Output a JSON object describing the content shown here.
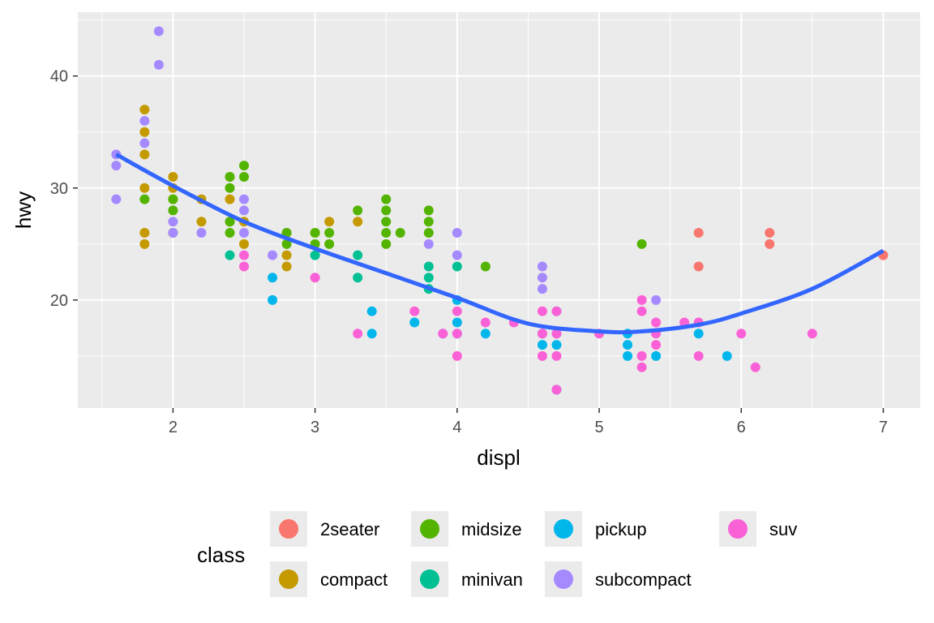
{
  "chart_data": {
    "type": "scatter",
    "title": "",
    "xlabel": "displ",
    "ylabel": "hwy",
    "xlim": [
      1.33,
      7.26
    ],
    "ylim": [
      10.36,
      45.7
    ],
    "x_ticks": [
      "2",
      "3",
      "4",
      "5",
      "6",
      "7"
    ],
    "y_ticks": [
      "20",
      "30",
      "40"
    ],
    "grid": true,
    "legend": {
      "title": "class",
      "placement": "bottom"
    },
    "colors": {
      "2seater": "#F8766D",
      "compact": "#C49A00",
      "midsize": "#53B400",
      "minivan": "#00C094",
      "pickup": "#00B6EB",
      "subcompact": "#A58AFF",
      "suv": "#FB61D7",
      "smooth": "#3366FF"
    },
    "legend_order": [
      "2seater",
      "midsize",
      "pickup",
      "suv",
      "compact",
      "minivan",
      "subcompact"
    ],
    "series": [
      {
        "name": "2seater",
        "points": [
          [
            5.7,
            26
          ],
          [
            5.7,
            23
          ],
          [
            6.2,
            26
          ],
          [
            6.2,
            25
          ],
          [
            7.0,
            24
          ]
        ]
      },
      {
        "name": "compact",
        "points": [
          [
            1.8,
            37
          ],
          [
            1.8,
            35
          ],
          [
            1.8,
            33
          ],
          [
            1.8,
            30
          ],
          [
            1.8,
            26
          ],
          [
            1.8,
            25
          ],
          [
            2.0,
            31
          ],
          [
            2.0,
            30
          ],
          [
            2.0,
            29
          ],
          [
            2.0,
            26
          ],
          [
            2.2,
            29
          ],
          [
            2.2,
            27
          ],
          [
            2.4,
            31
          ],
          [
            2.4,
            29
          ],
          [
            2.4,
            27
          ],
          [
            2.5,
            27
          ],
          [
            2.5,
            25
          ],
          [
            2.8,
            26
          ],
          [
            2.8,
            24
          ],
          [
            2.8,
            23
          ],
          [
            3.0,
            26
          ],
          [
            3.1,
            27
          ],
          [
            3.3,
            27
          ]
        ]
      },
      {
        "name": "midsize",
        "points": [
          [
            1.8,
            29
          ],
          [
            2.0,
            29
          ],
          [
            2.0,
            28
          ],
          [
            2.0,
            26
          ],
          [
            2.4,
            31
          ],
          [
            2.4,
            30
          ],
          [
            2.4,
            27
          ],
          [
            2.4,
            26
          ],
          [
            2.5,
            32
          ],
          [
            2.5,
            31
          ],
          [
            2.8,
            26
          ],
          [
            2.8,
            25
          ],
          [
            3.0,
            26
          ],
          [
            3.0,
            25
          ],
          [
            3.1,
            26
          ],
          [
            3.1,
            25
          ],
          [
            3.3,
            28
          ],
          [
            3.5,
            29
          ],
          [
            3.5,
            28
          ],
          [
            3.5,
            27
          ],
          [
            3.5,
            26
          ],
          [
            3.5,
            25
          ],
          [
            3.6,
            26
          ],
          [
            3.8,
            28
          ],
          [
            3.8,
            27
          ],
          [
            3.8,
            26
          ],
          [
            4.2,
            23
          ],
          [
            5.3,
            25
          ]
        ]
      },
      {
        "name": "minivan",
        "points": [
          [
            2.4,
            24
          ],
          [
            3.0,
            24
          ],
          [
            3.3,
            24
          ],
          [
            3.3,
            22
          ],
          [
            3.8,
            23
          ],
          [
            3.8,
            22
          ],
          [
            3.8,
            21
          ],
          [
            4.0,
            23
          ]
        ]
      },
      {
        "name": "pickup",
        "points": [
          [
            2.7,
            22
          ],
          [
            2.7,
            20
          ],
          [
            3.4,
            19
          ],
          [
            3.4,
            17
          ],
          [
            3.7,
            18
          ],
          [
            3.9,
            17
          ],
          [
            4.0,
            20
          ],
          [
            4.0,
            18
          ],
          [
            4.0,
            17
          ],
          [
            4.2,
            17
          ],
          [
            4.6,
            17
          ],
          [
            4.6,
            16
          ],
          [
            4.7,
            19
          ],
          [
            4.7,
            17
          ],
          [
            4.7,
            16
          ],
          [
            4.7,
            12
          ],
          [
            5.2,
            17
          ],
          [
            5.2,
            16
          ],
          [
            5.2,
            15
          ],
          [
            5.4,
            15
          ],
          [
            5.7,
            17
          ],
          [
            5.9,
            15
          ]
        ]
      },
      {
        "name": "subcompact",
        "points": [
          [
            1.6,
            33
          ],
          [
            1.6,
            32
          ],
          [
            1.6,
            29
          ],
          [
            1.8,
            36
          ],
          [
            1.8,
            34
          ],
          [
            1.9,
            44
          ],
          [
            1.9,
            41
          ],
          [
            2.0,
            27
          ],
          [
            2.0,
            26
          ],
          [
            2.2,
            26
          ],
          [
            2.5,
            29
          ],
          [
            2.5,
            28
          ],
          [
            2.5,
            26
          ],
          [
            2.7,
            24
          ],
          [
            3.8,
            25
          ],
          [
            4.0,
            26
          ],
          [
            4.0,
            24
          ],
          [
            4.6,
            23
          ],
          [
            4.6,
            22
          ],
          [
            4.6,
            21
          ],
          [
            5.4,
            20
          ]
        ]
      },
      {
        "name": "suv",
        "points": [
          [
            2.5,
            24
          ],
          [
            2.5,
            23
          ],
          [
            3.0,
            22
          ],
          [
            3.3,
            17
          ],
          [
            3.7,
            19
          ],
          [
            3.9,
            17
          ],
          [
            4.0,
            19
          ],
          [
            4.0,
            17
          ],
          [
            4.0,
            15
          ],
          [
            4.2,
            18
          ],
          [
            4.4,
            18
          ],
          [
            4.6,
            19
          ],
          [
            4.6,
            17
          ],
          [
            4.6,
            15
          ],
          [
            4.7,
            19
          ],
          [
            4.7,
            17
          ],
          [
            4.7,
            15
          ],
          [
            4.7,
            12
          ],
          [
            5.0,
            17
          ],
          [
            5.3,
            20
          ],
          [
            5.3,
            19
          ],
          [
            5.3,
            15
          ],
          [
            5.3,
            14
          ],
          [
            5.4,
            18
          ],
          [
            5.4,
            17
          ],
          [
            5.4,
            16
          ],
          [
            5.6,
            18
          ],
          [
            5.7,
            18
          ],
          [
            5.7,
            15
          ],
          [
            6.0,
            17
          ],
          [
            6.1,
            14
          ],
          [
            6.5,
            17
          ]
        ]
      }
    ],
    "smooth": [
      [
        1.6,
        33
      ],
      [
        2.0,
        30.2
      ],
      [
        2.5,
        27
      ],
      [
        3.0,
        24.6
      ],
      [
        3.5,
        22.4
      ],
      [
        4.0,
        20.2
      ],
      [
        4.5,
        17.9
      ],
      [
        5.0,
        17.2
      ],
      [
        5.3,
        17.2
      ],
      [
        5.7,
        17.8
      ],
      [
        6.0,
        18.8
      ],
      [
        6.5,
        21
      ],
      [
        7.0,
        24.4
      ]
    ]
  }
}
